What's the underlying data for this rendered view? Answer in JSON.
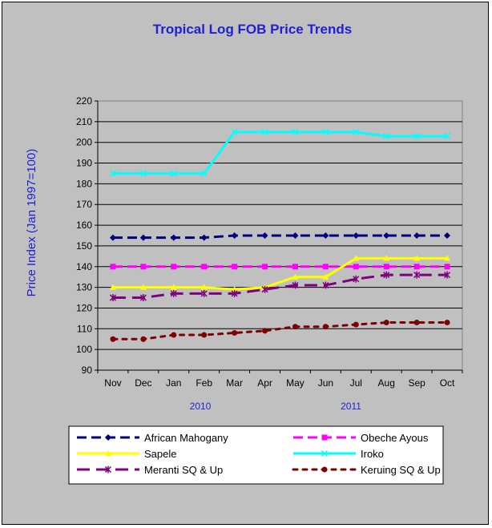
{
  "chart_data": {
    "type": "line",
    "title": "Tropical Log FOB Price Trends",
    "xlabel": "",
    "ylabel": "Price Index (Jan 1997=100)",
    "ylim": [
      90,
      220
    ],
    "yticks": [
      90,
      100,
      110,
      120,
      130,
      140,
      150,
      160,
      170,
      180,
      190,
      200,
      210,
      220
    ],
    "grid": true,
    "legend_position": "bottom",
    "categories": [
      "Nov",
      "Dec",
      "Jan",
      "Feb",
      "Mar",
      "Apr",
      "May",
      "Jun",
      "Jul",
      "Aug",
      "Sep",
      "Oct"
    ],
    "year_labels": [
      "2010",
      "2011"
    ],
    "series": [
      {
        "name": "African Mahogany",
        "color": "#00007f",
        "dash": "dash",
        "marker": "diamond",
        "values": [
          154,
          154,
          154,
          154,
          155,
          155,
          155,
          155,
          155,
          155,
          155,
          155
        ]
      },
      {
        "name": "Obeche Ayous",
        "color": "#ff00ff",
        "dash": "dash",
        "marker": "square",
        "values": [
          140,
          140,
          140,
          140,
          140,
          140,
          140,
          140,
          140,
          140,
          140,
          140
        ]
      },
      {
        "name": "Sapele",
        "color": "#ffff00",
        "dash": "solid",
        "marker": "triangle",
        "values": [
          130,
          130,
          130,
          130,
          129,
          130,
          135,
          135,
          144,
          144,
          144,
          144
        ]
      },
      {
        "name": "Iroko",
        "color": "#00ffff",
        "dash": "solid",
        "marker": "x",
        "values": [
          185,
          185,
          185,
          185,
          205,
          205,
          205,
          205,
          205,
          203,
          203,
          203
        ]
      },
      {
        "name": "Meranti SQ & Up",
        "color": "#7f007f",
        "dash": "longdash",
        "marker": "star",
        "values": [
          125,
          125,
          127,
          127,
          127,
          129,
          131,
          131,
          134,
          136,
          136,
          136
        ]
      },
      {
        "name": "Keruing SQ & Up",
        "color": "#7f0000",
        "dash": "dot",
        "marker": "circle",
        "values": [
          105,
          105,
          107,
          107,
          108,
          109,
          111,
          111,
          112,
          113,
          113,
          113
        ]
      }
    ]
  }
}
